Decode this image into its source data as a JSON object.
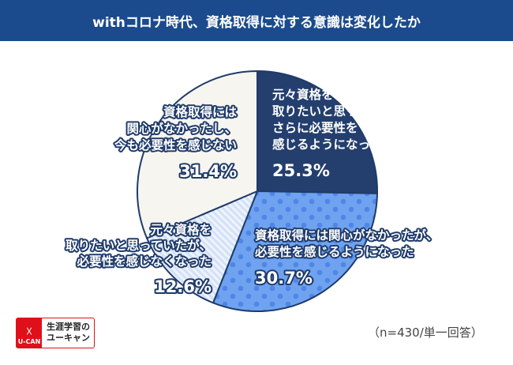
{
  "title": "withコロナ時代、資格取得に対する意識は変化したか",
  "note": "（n=430/単一回答）",
  "logo": {
    "name_line1": "生涯学習の",
    "name_line2": "ユーキャン",
    "mark_text": "U-CAN"
  },
  "chart_data": {
    "type": "pie",
    "title": "withコロナ時代、資格取得に対する意識は変化したか",
    "start": "top, clockwise",
    "slices": [
      {
        "label_lines": [
          "元々資格を",
          "取りたいと思っていたが、",
          "さらに必要性を",
          "感じるようになった"
        ],
        "value": 25.3,
        "value_label": "25.3%",
        "color": "#243f6e",
        "pattern": "solid"
      },
      {
        "label_lines": [
          "資格取得には関心がなかったが、",
          "必要性を感じるようになった"
        ],
        "value": 30.7,
        "value_label": "30.7%",
        "color": "#6fa3f0",
        "pattern": "dots"
      },
      {
        "label_lines": [
          "元々資格を",
          "取りたいと思っていたが、",
          "必要性を感じなくなった"
        ],
        "value": 12.6,
        "value_label": "12.6%",
        "color": "#e3ecfb",
        "pattern": "stripes"
      },
      {
        "label_lines": [
          "資格取得には",
          "関心がなかったし、",
          "今も必要性を感じない"
        ],
        "value": 31.4,
        "value_label": "31.4%",
        "color": "#f7f5ef",
        "pattern": "solid"
      }
    ]
  }
}
